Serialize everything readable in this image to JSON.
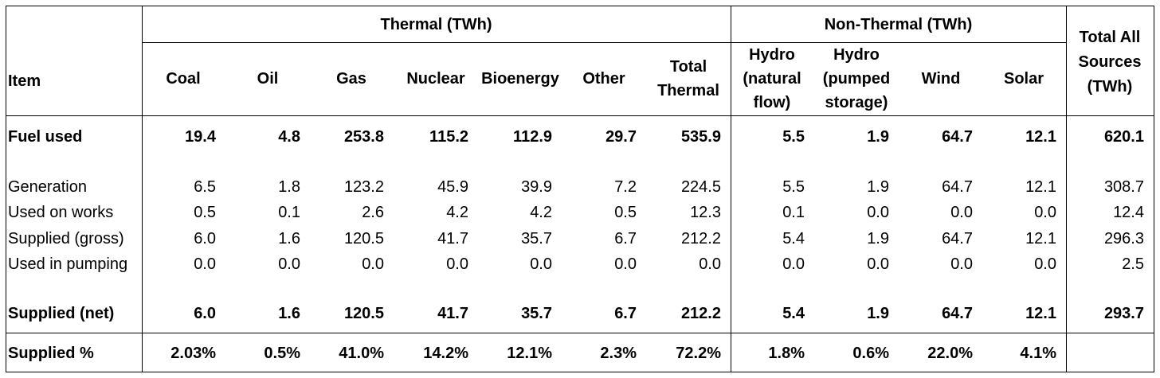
{
  "header": {
    "thermal_group": "Thermal (TWh)",
    "nonthermal_group": "Non-Thermal (TWh)",
    "total_all_lines": [
      "Total All",
      "Sources",
      "(TWh)"
    ],
    "item": "Item",
    "columns": [
      [
        "Coal"
      ],
      [
        "Oil"
      ],
      [
        "Gas"
      ],
      [
        "Nuclear"
      ],
      [
        "Bioenergy"
      ],
      [
        "Other"
      ],
      [
        "Total",
        "Thermal"
      ],
      [
        "Hydro",
        "(natural",
        "flow)"
      ],
      [
        "Hydro",
        "(pumped",
        "storage)"
      ],
      [
        "Wind"
      ],
      [
        "Solar"
      ]
    ]
  },
  "rows": [
    {
      "label": "Fuel used",
      "bold": true,
      "values": [
        "19.4",
        "4.8",
        "253.8",
        "115.2",
        "112.9",
        "29.7",
        "535.9",
        "5.5",
        "1.9",
        "64.7",
        "12.1",
        "620.1"
      ]
    },
    {
      "label": "Generation",
      "bold": false,
      "values": [
        "6.5",
        "1.8",
        "123.2",
        "45.9",
        "39.9",
        "7.2",
        "224.5",
        "5.5",
        "1.9",
        "64.7",
        "12.1",
        "308.7"
      ]
    },
    {
      "label": "Used on works",
      "bold": false,
      "values": [
        "0.5",
        "0.1",
        "2.6",
        "4.2",
        "4.2",
        "0.5",
        "12.3",
        "0.1",
        "0.0",
        "0.0",
        "0.0",
        "12.4"
      ]
    },
    {
      "label": "Supplied (gross)",
      "bold": false,
      "values": [
        "6.0",
        "1.6",
        "120.5",
        "41.7",
        "35.7",
        "6.7",
        "212.2",
        "5.4",
        "1.9",
        "64.7",
        "12.1",
        "296.3"
      ]
    },
    {
      "label": "Used in pumping",
      "bold": false,
      "values": [
        "0.0",
        "0.0",
        "0.0",
        "0.0",
        "0.0",
        "0.0",
        "0.0",
        "0.0",
        "0.0",
        "0.0",
        "0.0",
        "2.5"
      ]
    },
    {
      "label": "Supplied (net)",
      "bold": true,
      "values": [
        "6.0",
        "1.6",
        "120.5",
        "41.7",
        "35.7",
        "6.7",
        "212.2",
        "5.4",
        "1.9",
        "64.7",
        "12.1",
        "293.7"
      ]
    },
    {
      "label": "Supplied %",
      "bold": true,
      "values": [
        "2.03%",
        "0.5%",
        "41.0%",
        "14.2%",
        "12.1%",
        "2.3%",
        "72.2%",
        "1.8%",
        "0.6%",
        "22.0%",
        "4.1%",
        ""
      ]
    }
  ]
}
